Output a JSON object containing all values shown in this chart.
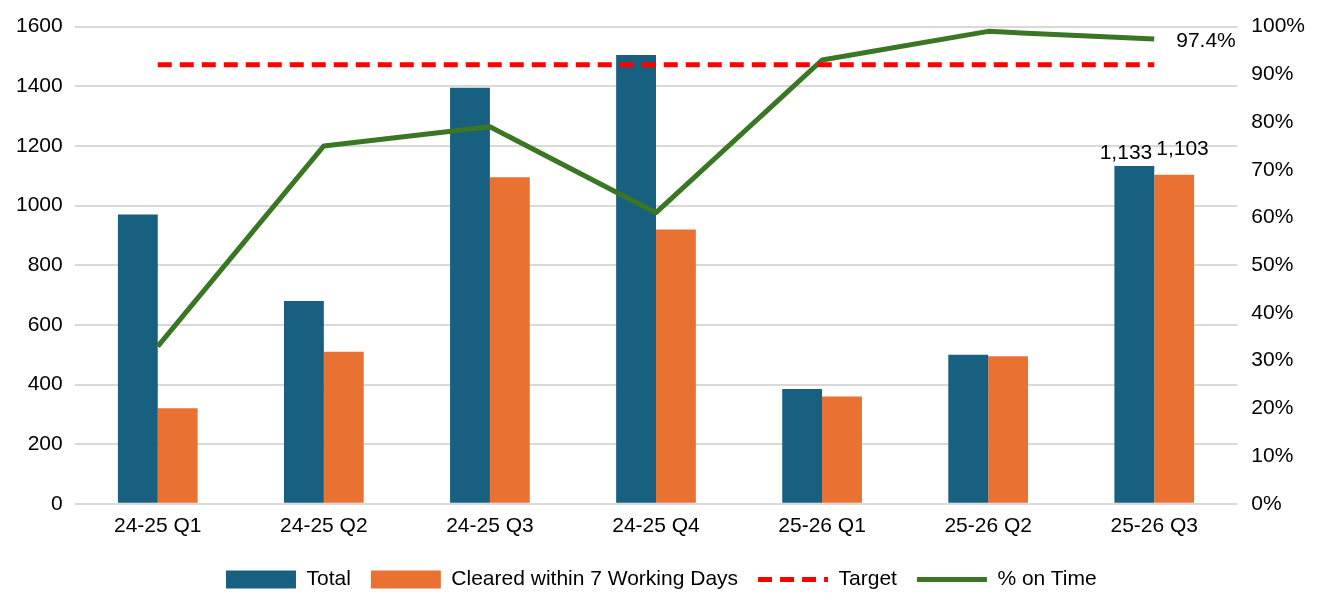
{
  "chart_data": {
    "type": "bar",
    "categories": [
      "24-25 Q1",
      "24-25 Q2",
      "24-25 Q3",
      "24-25 Q4",
      "25-26 Q1",
      "25-26 Q2",
      "25-26 Q3"
    ],
    "series": [
      {
        "name": "Total",
        "color": "#17607f",
        "values": [
          970,
          680,
          1395,
          1505,
          385,
          500,
          1133
        ],
        "value_labels": [
          null,
          null,
          null,
          null,
          null,
          null,
          "1,133"
        ]
      },
      {
        "name": "Cleared within 7 Working Days",
        "color": "#e97132",
        "values": [
          320,
          510,
          1095,
          920,
          360,
          495,
          1103
        ],
        "value_labels": [
          null,
          null,
          null,
          null,
          null,
          null,
          "1,103"
        ]
      },
      {
        "name": "Target",
        "type": "line",
        "axis": "y2",
        "color": "#ff0000",
        "line_style": "dashed",
        "values": [
          92,
          92,
          92,
          92,
          92,
          92,
          92
        ]
      },
      {
        "name": "% on Time",
        "type": "line",
        "axis": "y2",
        "color": "#3a7623",
        "line_style": "solid",
        "values": [
          33,
          75,
          79,
          61,
          93,
          99,
          97.4
        ],
        "value_labels": [
          null,
          null,
          null,
          null,
          null,
          null,
          "97.4%"
        ]
      }
    ],
    "ylim": [
      0,
      1600
    ],
    "yticks": [
      0,
      200,
      400,
      600,
      800,
      1000,
      1200,
      1400,
      1600
    ],
    "y2lim": [
      0,
      100
    ],
    "y2ticks": [
      {
        "value": 0,
        "label": "0%"
      },
      {
        "value": 10,
        "label": "10%"
      },
      {
        "value": 20,
        "label": "20%"
      },
      {
        "value": 30,
        "label": "30%"
      },
      {
        "value": 40,
        "label": "40%"
      },
      {
        "value": 50,
        "label": "50%"
      },
      {
        "value": 60,
        "label": "60%"
      },
      {
        "value": 70,
        "label": "70%"
      },
      {
        "value": 80,
        "label": "80%"
      },
      {
        "value": 90,
        "label": "90%"
      },
      {
        "value": 100,
        "label": "100%"
      }
    ],
    "grid": "y",
    "legend": "bottom",
    "marker": "none"
  }
}
